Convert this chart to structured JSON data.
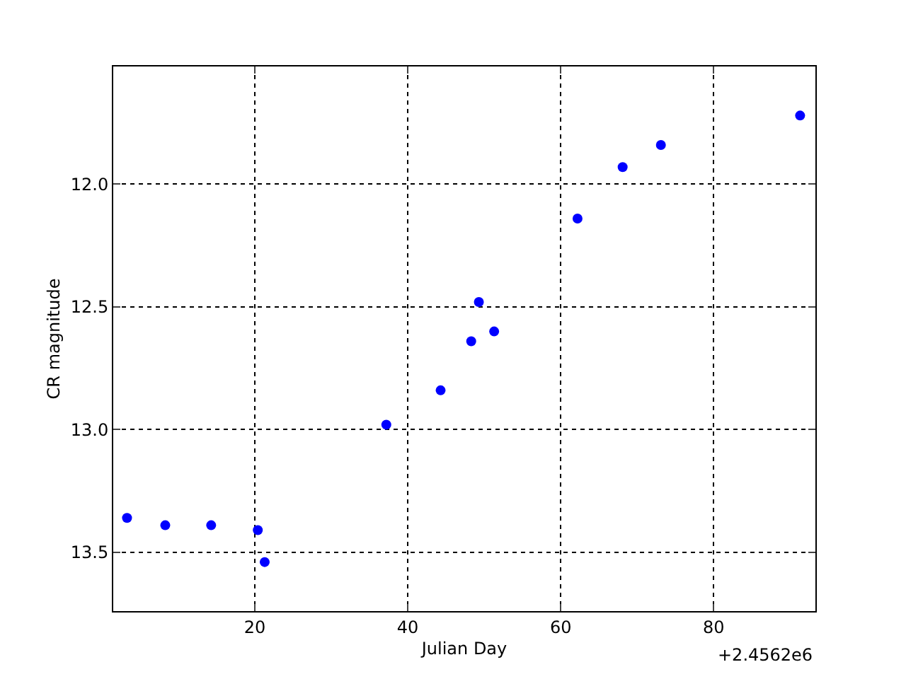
{
  "chart_data": {
    "type": "scatter",
    "xlabel": "Julian Day",
    "ylabel": "CR magnitude",
    "annotations": [
      "+2.4562e6"
    ],
    "x": [
      3.3,
      8.3,
      14.3,
      20.4,
      21.3,
      37.2,
      44.3,
      48.3,
      49.3,
      51.3,
      62.2,
      68.1,
      73.1,
      91.3
    ],
    "series": [
      {
        "color": "#0000ff",
        "values": [
          13.36,
          13.39,
          13.39,
          13.41,
          13.54,
          12.98,
          12.84,
          12.64,
          12.48,
          12.6,
          12.14,
          11.93,
          11.84,
          11.72
        ]
      }
    ],
    "xlim": [
      1.5,
      93.3
    ],
    "xticks": [
      20,
      40,
      60,
      80
    ],
    "ylim": [
      13.74,
      11.52
    ],
    "yticks": [
      {
        "value": 12,
        "label": "12.0"
      },
      {
        "value": 12.5,
        "label": "12.5"
      },
      {
        "value": 13,
        "label": "13.0"
      },
      {
        "value": 13.5,
        "label": "13.5"
      }
    ],
    "grid": true,
    "marker": "circle"
  }
}
